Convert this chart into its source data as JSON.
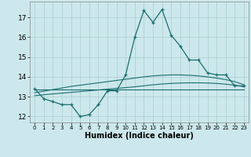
{
  "xlabel": "Humidex (Indice chaleur)",
  "background_color": "#cce8ec",
  "grid_color": "#aacccc",
  "line_color": "#1a6e6e",
  "x": [
    0,
    1,
    2,
    3,
    4,
    5,
    6,
    7,
    8,
    9,
    10,
    11,
    12,
    13,
    14,
    15,
    16,
    17,
    18,
    19,
    20,
    21,
    22,
    23
  ],
  "y_main": [
    13.4,
    12.9,
    12.75,
    12.6,
    12.6,
    12.0,
    12.1,
    12.6,
    13.3,
    13.3,
    14.1,
    16.0,
    17.35,
    16.75,
    17.4,
    16.1,
    15.55,
    14.85,
    14.85,
    14.2,
    14.1,
    14.1,
    13.55,
    13.55
  ],
  "y_trend1": [
    13.35,
    13.35,
    13.35,
    13.35,
    13.35,
    13.35,
    13.35,
    13.35,
    13.35,
    13.35,
    13.35,
    13.35,
    13.35,
    13.35,
    13.35,
    13.35,
    13.35,
    13.35,
    13.35,
    13.35,
    13.35,
    13.35,
    13.35,
    13.35
  ],
  "y_trend2": [
    13.2,
    13.28,
    13.36,
    13.44,
    13.52,
    13.58,
    13.64,
    13.7,
    13.76,
    13.82,
    13.88,
    13.94,
    14.0,
    14.05,
    14.08,
    14.1,
    14.1,
    14.08,
    14.05,
    14.0,
    13.94,
    13.86,
    13.76,
    13.6
  ],
  "y_trend3": [
    13.05,
    13.1,
    13.14,
    13.18,
    13.22,
    13.26,
    13.3,
    13.34,
    13.38,
    13.42,
    13.46,
    13.5,
    13.55,
    13.6,
    13.64,
    13.67,
    13.69,
    13.7,
    13.7,
    13.69,
    13.67,
    13.63,
    13.58,
    13.5
  ],
  "ylim": [
    11.7,
    17.8
  ],
  "yticks": [
    12,
    13,
    14,
    15,
    16,
    17
  ],
  "xticks": [
    0,
    1,
    2,
    3,
    4,
    5,
    6,
    7,
    8,
    9,
    10,
    11,
    12,
    13,
    14,
    15,
    16,
    17,
    18,
    19,
    20,
    21,
    22,
    23
  ],
  "xlabel_fontsize": 7,
  "tick_fontsize": 6.5
}
